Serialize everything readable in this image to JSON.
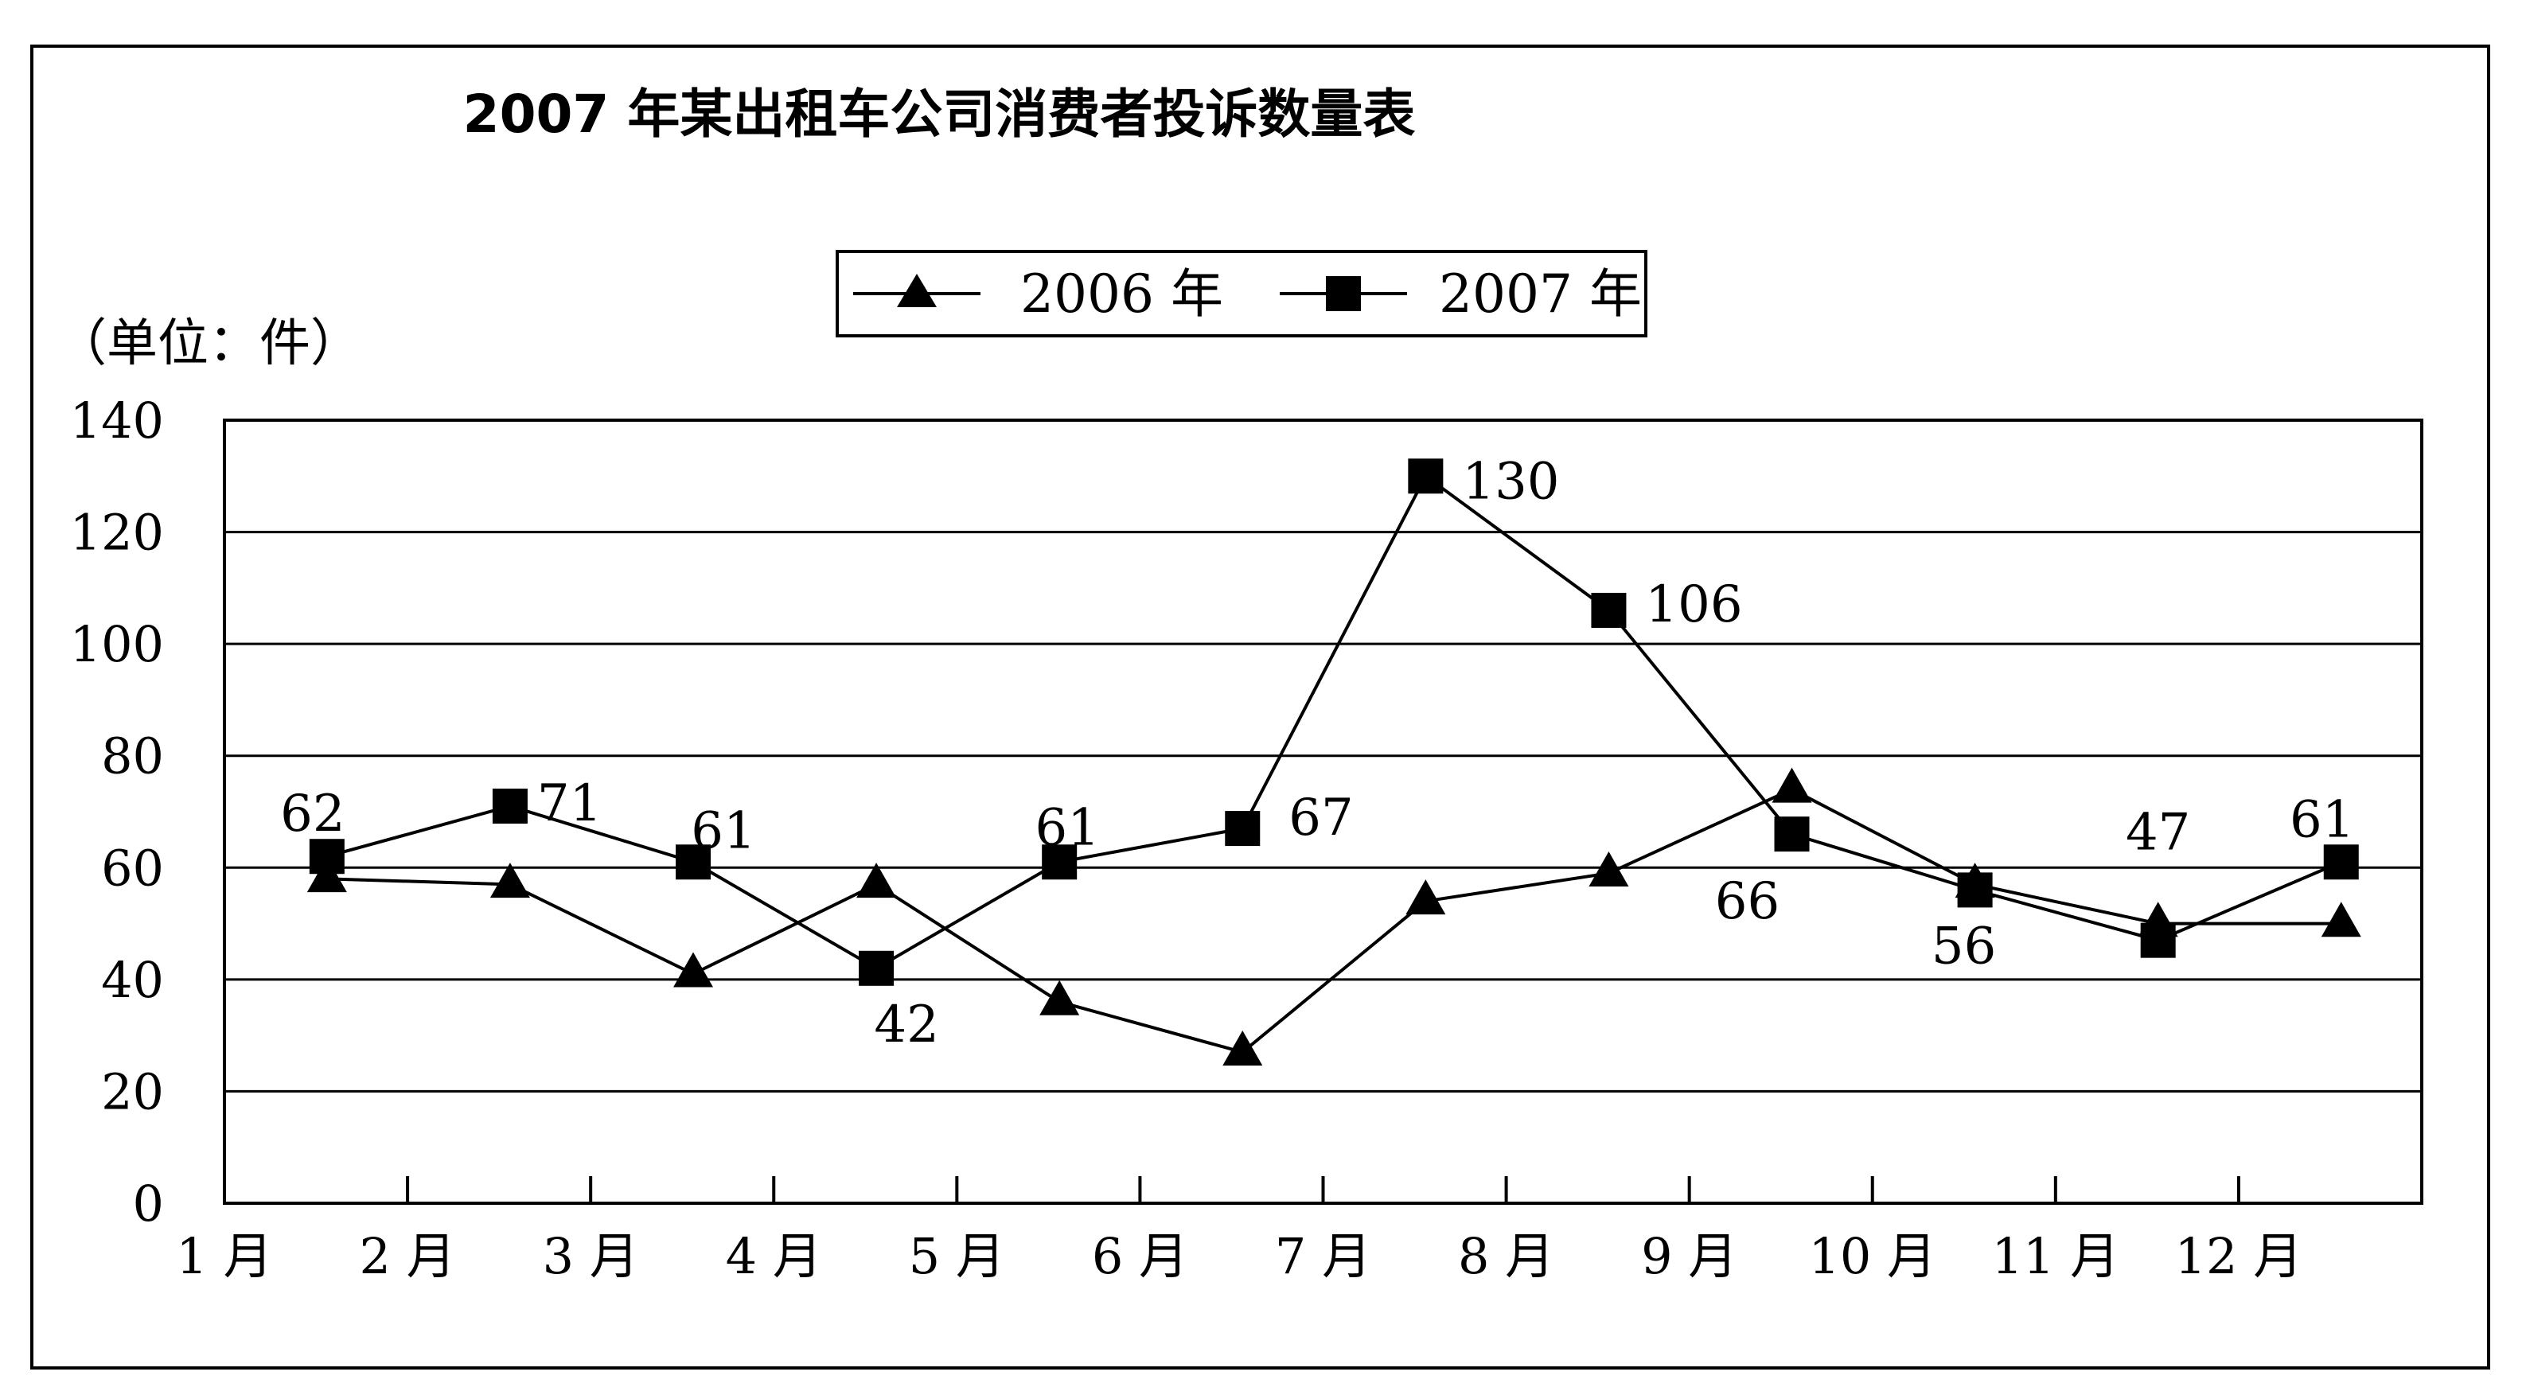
{
  "chart_data": {
    "type": "line",
    "title": "2007 年某出租车公司消费者投诉数量表",
    "unit_label": "（单位：件）",
    "categories": [
      "1 月",
      "2 月",
      "3 月",
      "4 月",
      "5 月",
      "6 月",
      "7 月",
      "8 月",
      "9 月",
      "10 月",
      "11 月",
      "12 月"
    ],
    "ylim": [
      0,
      140
    ],
    "yticks": [
      "0",
      "20",
      "40",
      "60",
      "80",
      "100",
      "120",
      "140"
    ],
    "grid": true,
    "legend_position": "top-center",
    "series": [
      {
        "name": "2006 年",
        "marker": "triangle",
        "values": [
          58,
          57,
          41,
          57,
          36,
          27,
          54,
          59,
          74,
          57,
          50,
          50
        ],
        "data_labels": [
          "",
          "",
          "",
          "",
          "",
          "",
          "",
          "",
          "",
          "",
          "",
          ""
        ]
      },
      {
        "name": "2007 年",
        "marker": "square",
        "values": [
          62,
          71,
          61,
          42,
          61,
          67,
          130,
          106,
          66,
          56,
          47,
          61
        ],
        "data_labels": [
          "62",
          "71",
          "61",
          "42",
          "61",
          "67",
          "130",
          "106",
          "66",
          "56",
          "47",
          "61"
        ]
      }
    ]
  }
}
